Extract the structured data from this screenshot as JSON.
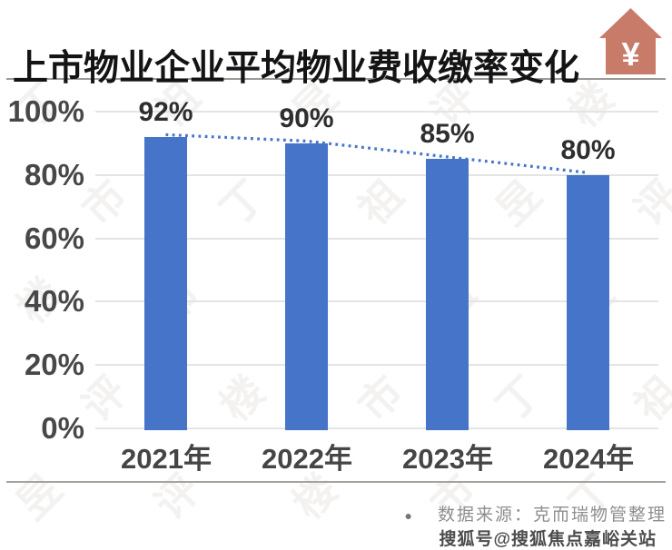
{
  "page": {
    "title": "上市物业企业平均物业费收缴率变化",
    "icon_symbol": "¥",
    "source_bullet": "●",
    "source_text": "数据来源：克而瑞物管整理",
    "watermark_bottom": "搜狐号@搜狐焦点嘉峪关站",
    "watermark_pattern_chars": "丁祖昱评楼市"
  },
  "colors": {
    "bar": "#4574C9",
    "trend_line": "#4575C9",
    "house_icon": "#C97B69",
    "icon_symbol": "#FFFFFF",
    "gridline": "#E4E4E4",
    "title_text": "#141414",
    "axis_text": "#484848",
    "source_text": "#8F8F8F"
  },
  "chart_data": {
    "type": "bar",
    "title": "上市物业企业平均物业费收缴率变化",
    "categories": [
      "2021年",
      "2022年",
      "2023年",
      "2024年"
    ],
    "values": [
      92,
      90,
      85,
      80
    ],
    "data_labels": [
      "92%",
      "90%",
      "85%",
      "80%"
    ],
    "ytick_values": [
      100,
      80,
      60,
      40,
      20,
      0
    ],
    "ytick_labels": [
      "100%",
      "80%",
      "60%",
      "40%",
      "20%",
      "0%"
    ],
    "ylim": [
      0,
      100
    ],
    "grid": true,
    "legend": false,
    "bar_color": "#4574C9",
    "trend_line": {
      "style": "dotted",
      "color": "#4575C9",
      "points": [
        92,
        90,
        85,
        80
      ],
      "description": "dotted line connecting bar tops, declining from 92% to 80%"
    },
    "source": "数据来源：克而瑞物管整理"
  }
}
